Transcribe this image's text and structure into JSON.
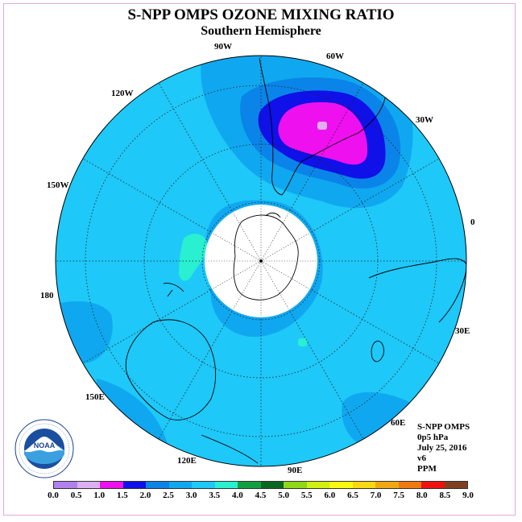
{
  "header": {
    "title": "S-NPP OMPS OZONE MIXING RATIO",
    "subtitle": "Southern Hemisphere"
  },
  "map": {
    "longitude_labels": [
      "90W",
      "60W",
      "30W",
      "0",
      "30E",
      "60E",
      "90E",
      "120E",
      "150E",
      "180",
      "150W",
      "120W"
    ],
    "field_colors": {
      "background": "#1ec8f8",
      "mid": "#0fa8f0",
      "deep": "#0a84e8",
      "dark_blue": "#1010e8",
      "magenta": "#ee10ee",
      "light_magenta": "#ddb0ee",
      "cyan": "#28f0d0"
    }
  },
  "info": {
    "instrument": "S-NPP OMPS",
    "level": "0p5 hPa",
    "date": "July 25, 2016",
    "version": "v6",
    "units": "PPM"
  },
  "colorbar": {
    "ticks": [
      "0.0",
      "0.5",
      "1.0",
      "1.5",
      "2.0",
      "2.5",
      "3.0",
      "3.5",
      "4.0",
      "4.5",
      "5.0",
      "5.5",
      "6.0",
      "6.5",
      "7.0",
      "7.5",
      "8.0",
      "8.5",
      "9.0"
    ],
    "colors": [
      "#b080ee",
      "#dcb0f0",
      "#ee10ee",
      "#1010e8",
      "#0a84e8",
      "#0fa8f0",
      "#1ec8f8",
      "#28f0d0",
      "#10a040",
      "#086820",
      "#90d818",
      "#d0f010",
      "#f8f810",
      "#f8d810",
      "#f0a810",
      "#f07810",
      "#f01010",
      "#804020"
    ]
  },
  "logo": {
    "text": "NOAA",
    "ring_text": "NATIONAL OCEANIC AND ATMOSPHERIC ADMINISTRATION · U.S. DEPARTMENT OF COMMERCE"
  }
}
